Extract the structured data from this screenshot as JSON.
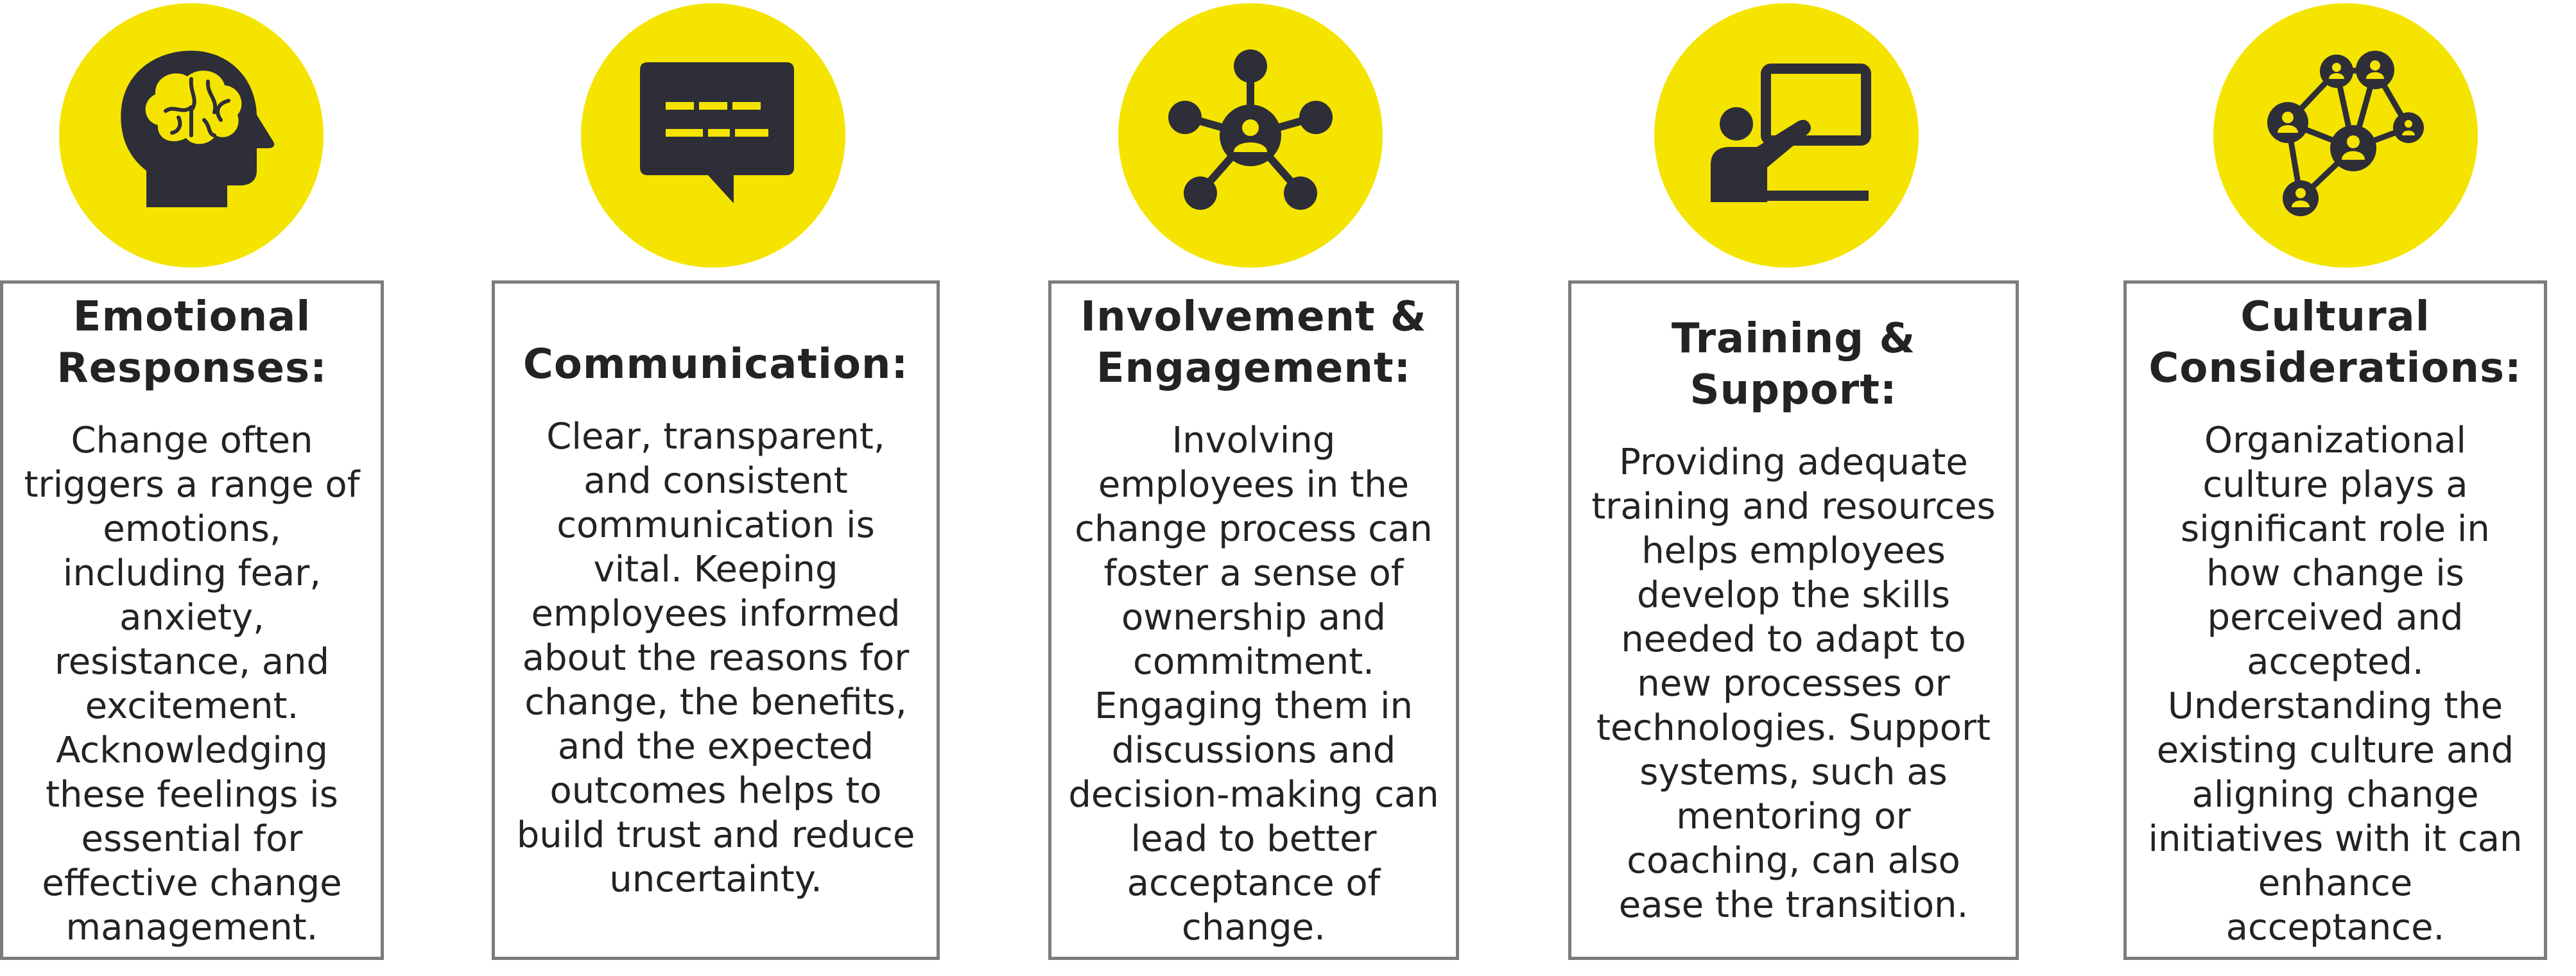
{
  "accent_color": "#f5e400",
  "text_color": "#232323",
  "border_color": "#7c7c7c",
  "cards": [
    {
      "icon": "brain-head-icon",
      "title": "Emotional Responses:",
      "body": "Change often triggers a range of emotions, including fear, anxiety, resistance, and excitement. Acknowledging these feelings is essential for effective change management."
    },
    {
      "icon": "chat-bubble-icon",
      "title": "Communication:",
      "body": "Clear, transparent, and consistent communication is vital. Keeping employees informed about the reasons for change, the benefits, and the expected outcomes helps to build trust and reduce uncertainty."
    },
    {
      "icon": "people-network-hub-icon",
      "title": "Involvement & Engagement:",
      "body": "Involving employees in the change process can foster a sense of ownership and commitment. Engaging them in discussions and decision-making can lead to better acceptance of change."
    },
    {
      "icon": "presenter-board-icon",
      "title": "Training & Support:",
      "body": "Providing adequate training and resources helps employees develop the skills needed to adapt to new processes or technologies. Support systems, such as mentoring or coaching, can also ease the transition."
    },
    {
      "icon": "connected-people-icon",
      "title": "Cultural Considerations:",
      "body": "Organizational culture plays a significant role in how change is perceived and accepted. Understanding the existing culture and aligning change initiatives with it can enhance acceptance."
    }
  ]
}
